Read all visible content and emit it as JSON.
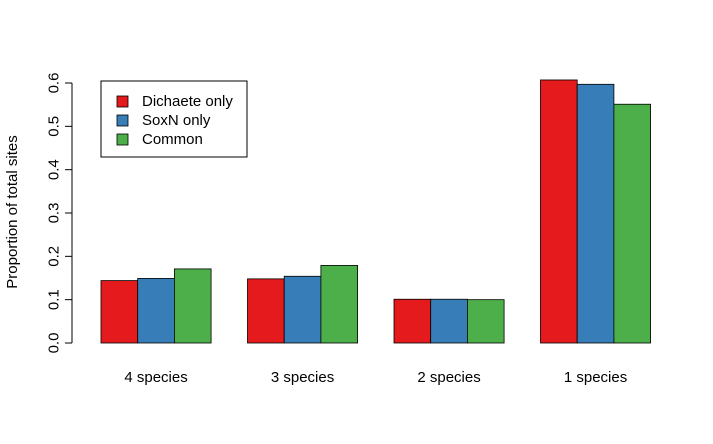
{
  "chart_data": {
    "type": "bar",
    "categories": [
      "4 species",
      "3 species",
      "2 species",
      "1 species"
    ],
    "series": [
      {
        "name": "Dichaete only",
        "color": "#e41a1c",
        "values": [
          0.144,
          0.148,
          0.101,
          0.607
        ]
      },
      {
        "name": "SoxN only",
        "color": "#377eb8",
        "values": [
          0.149,
          0.154,
          0.101,
          0.597
        ]
      },
      {
        "name": "Common",
        "color": "#4daf4a",
        "values": [
          0.171,
          0.179,
          0.1,
          0.551
        ]
      }
    ],
    "ylabel": "Proportion of total sites",
    "xlabel": "",
    "ylim": [
      0,
      0.6
    ],
    "yticks": [
      "0.0",
      "0.1",
      "0.2",
      "0.3",
      "0.4",
      "0.5",
      "0.6"
    ],
    "legend_position": "top-left",
    "grid": false
  }
}
